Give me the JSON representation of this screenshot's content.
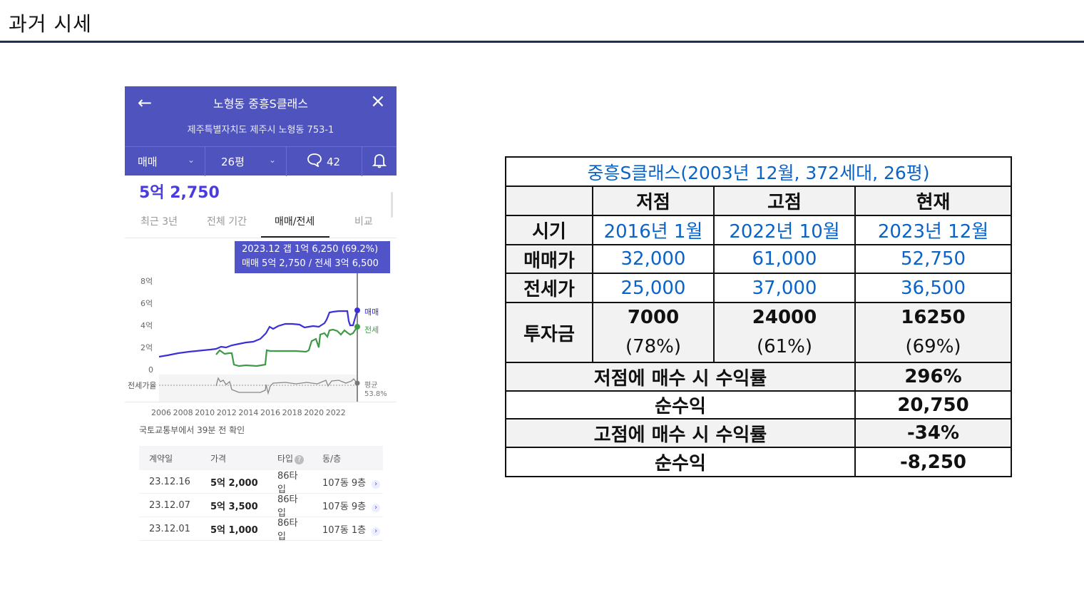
{
  "slide": {
    "title": "과거 시세"
  },
  "phone": {
    "header": {
      "back_icon": "arrow-left-icon",
      "title": "노형동 중흥S클래스",
      "close_icon": "close-icon",
      "address": "제주특별자치도 제주시 노형동 753-1",
      "trade_type": "매매",
      "size": "26평",
      "comments": "42",
      "bell_icon": "bell-icon"
    },
    "price": "5억 2,750",
    "tabs": [
      "최근 3년",
      "전체 기간",
      "매매/전세",
      "비교"
    ],
    "active_tab": "매매/전세",
    "tooltip": {
      "line1": "2023.12  갭 1억 6,250 (69.2%)",
      "line2": "매매 5억 2,750 / 전세 3억 6,500"
    },
    "chart": {
      "y_ticks": [
        "8억",
        "6억",
        "4억",
        "2억",
        "0"
      ],
      "x_ticks": [
        "2006",
        "2008",
        "2010",
        "2012",
        "2014",
        "2016",
        "2018",
        "2020",
        "2022"
      ],
      "legend_sale": "매매",
      "legend_jeonse": "전세",
      "ratio_label": "전세가율",
      "avg_label": "평균",
      "avg_value": "53.8%",
      "sale_color": "#3a2fd8",
      "jeonse_color": "#3d9a47"
    },
    "source": "국토교통부에서 39분 전 확인",
    "table": {
      "headers": [
        "계약일",
        "가격",
        "타입",
        "동/층"
      ],
      "rows": [
        [
          "23.12.16",
          "5억 2,000",
          "86타입",
          "107동 9층"
        ],
        [
          "23.12.07",
          "5억 3,500",
          "86타입",
          "107동 9층"
        ],
        [
          "23.12.01",
          "5억 1,000",
          "86타입",
          "107동 1층"
        ]
      ]
    }
  },
  "summary": {
    "title": "중흥S클래스(2003년 12월, 372세대, 26평)",
    "columns": [
      "저점",
      "고점",
      "현재"
    ],
    "rows": {
      "period": {
        "label": "시기",
        "values": [
          "2016년 1월",
          "2022년 10월",
          "2023년 12월"
        ]
      },
      "sale": {
        "label": "매매가",
        "values": [
          "32,000",
          "61,000",
          "52,750"
        ]
      },
      "jeonse": {
        "label": "전세가",
        "values": [
          "25,000",
          "37,000",
          "36,500"
        ]
      },
      "invest": {
        "label": "투자금",
        "values": [
          "7000",
          "24000",
          "16250"
        ],
        "ratios": [
          "(78%)",
          "(61%)",
          "(69%)"
        ]
      }
    },
    "metrics": [
      {
        "label": "저점에 매수 시 수익률",
        "value": "296%"
      },
      {
        "label": "순수익",
        "value": "20,750"
      },
      {
        "label": "고점에 매수 시 수익률",
        "value": "-34%"
      },
      {
        "label": "순수익",
        "value": "-8,250"
      }
    ]
  }
}
